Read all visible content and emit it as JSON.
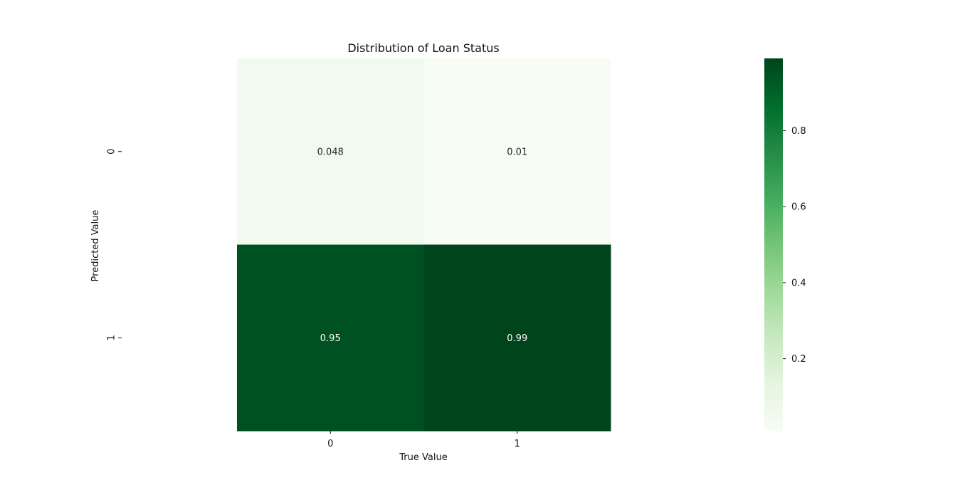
{
  "chart_data": {
    "type": "heatmap",
    "title": "Distribution of Loan Status",
    "xlabel": "True Value",
    "ylabel": "Predicted Value",
    "x_categories": [
      "0",
      "1"
    ],
    "y_categories": [
      "0",
      "1"
    ],
    "values": [
      [
        0.048,
        0.01
      ],
      [
        0.95,
        0.99
      ]
    ],
    "cell_labels": [
      [
        "0.048",
        "0.01"
      ],
      [
        "0.95",
        "0.99"
      ]
    ],
    "colormap": "Greens",
    "color_range": [
      0.01,
      0.99
    ],
    "colorbar": {
      "ticks": [
        0.2,
        0.4,
        0.6,
        0.8
      ],
      "tick_labels": [
        "0.2",
        "0.4",
        "0.6",
        "0.8"
      ],
      "placement": "right"
    },
    "grid": false
  }
}
